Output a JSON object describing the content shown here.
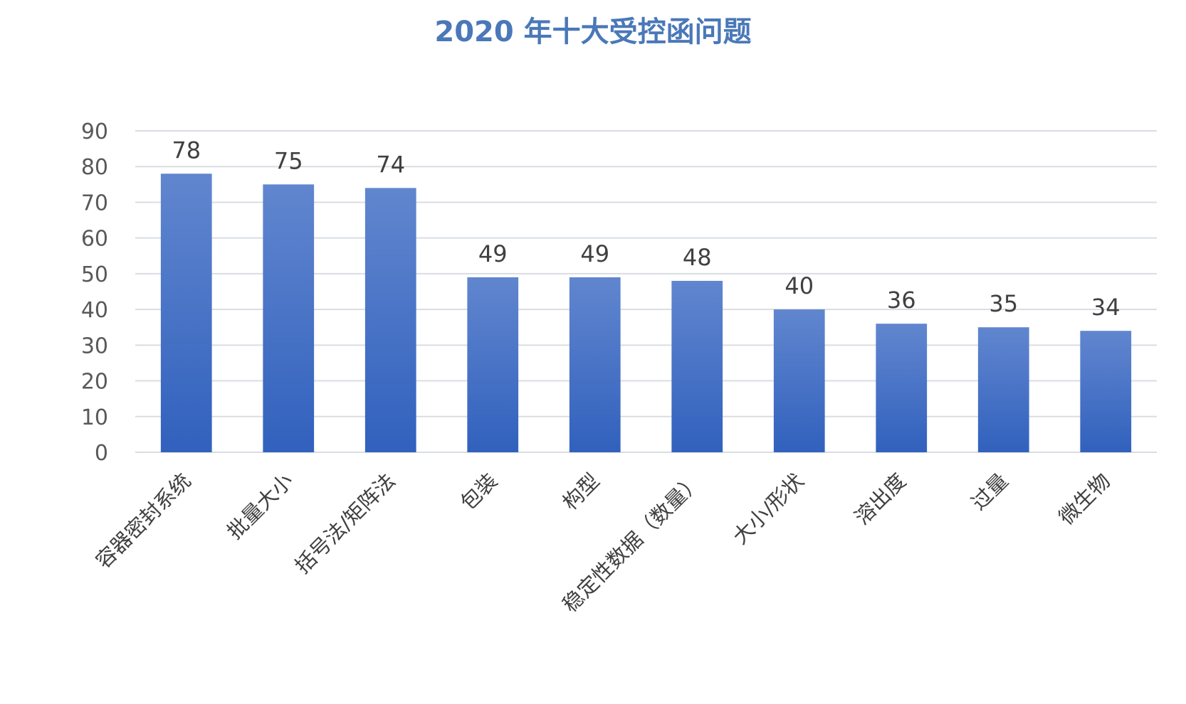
{
  "chart_data": {
    "type": "bar",
    "title": "2020 年十大受控函问题",
    "xlabel": "",
    "ylabel": "",
    "ylim": [
      0,
      90
    ],
    "ytick_step": 10,
    "grid": true,
    "legend": "none",
    "bar_color_top": "#6186cf",
    "bar_color_bottom": "#3161bd",
    "title_color": "#4a78b8",
    "categories": [
      "容器密封系统",
      "批量大小",
      "括号法/矩阵法",
      "包装",
      "构型",
      "稳定性数据（数量）",
      "大小/形状",
      "溶出度",
      "过量",
      "微生物"
    ],
    "values": [
      78,
      75,
      74,
      49,
      49,
      48,
      40,
      36,
      35,
      34
    ]
  }
}
